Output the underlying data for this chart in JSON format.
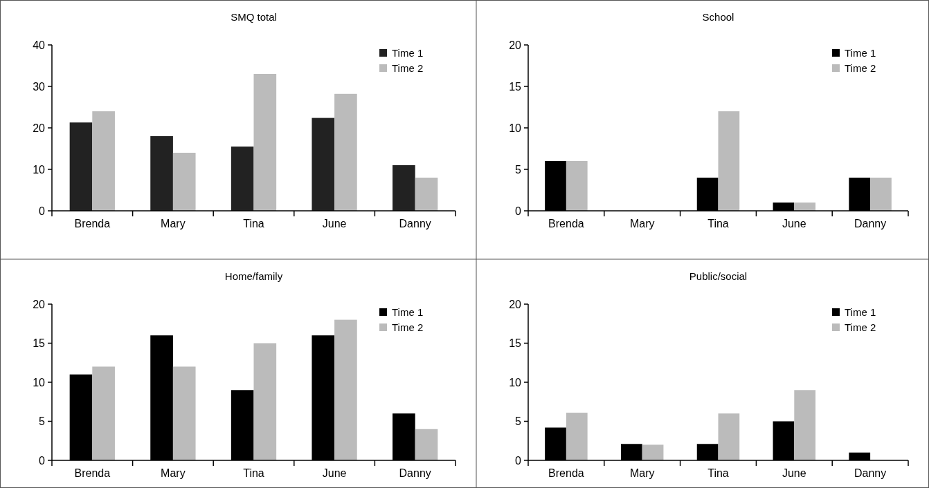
{
  "chart_data": [
    {
      "type": "bar",
      "title": "SMQ total",
      "categories": [
        "Brenda",
        "Mary",
        "Tina",
        "June",
        "Danny"
      ],
      "ylim": [
        0,
        40
      ],
      "yticks": [
        0,
        10,
        20,
        30,
        40
      ],
      "legend": "top right",
      "series": [
        {
          "name": "Time 1",
          "color": "#222222",
          "values": [
            21.3,
            18,
            15.5,
            22.4,
            11
          ]
        },
        {
          "name": "Time 2",
          "color": "#bbbbbb",
          "values": [
            24,
            14,
            33,
            28.2,
            8
          ]
        }
      ]
    },
    {
      "type": "bar",
      "title": "School",
      "categories": [
        "Brenda",
        "Mary",
        "Tina",
        "June",
        "Danny"
      ],
      "ylim": [
        0,
        20
      ],
      "yticks": [
        0,
        5,
        10,
        15,
        20
      ],
      "legend": "top right",
      "series": [
        {
          "name": "Time 1",
          "color": "#000000",
          "values": [
            6,
            0,
            4,
            1,
            4
          ]
        },
        {
          "name": "Time 2",
          "color": "#bbbbbb",
          "values": [
            6,
            0,
            12,
            1,
            4
          ]
        }
      ]
    },
    {
      "type": "bar",
      "title": "Home/family",
      "categories": [
        "Brenda",
        "Mary",
        "Tina",
        "June",
        "Danny"
      ],
      "ylim": [
        0,
        20
      ],
      "yticks": [
        0,
        5,
        10,
        15,
        20
      ],
      "legend": "top right",
      "series": [
        {
          "name": "Time 1",
          "color": "#000000",
          "values": [
            11,
            16,
            9,
            16,
            6
          ]
        },
        {
          "name": "Time 2",
          "color": "#bbbbbb",
          "values": [
            12,
            12,
            15,
            18,
            4
          ]
        }
      ]
    },
    {
      "type": "bar",
      "title": "Public/social",
      "categories": [
        "Brenda",
        "Mary",
        "Tina",
        "June",
        "Danny"
      ],
      "ylim": [
        0,
        20
      ],
      "yticks": [
        0,
        5,
        10,
        15,
        20
      ],
      "legend": "top right",
      "series": [
        {
          "name": "Time 1",
          "color": "#000000",
          "values": [
            4.2,
            2.1,
            2.1,
            5,
            1
          ]
        },
        {
          "name": "Time 2",
          "color": "#bbbbbb",
          "values": [
            6.1,
            2,
            6,
            9,
            0
          ]
        }
      ]
    }
  ]
}
